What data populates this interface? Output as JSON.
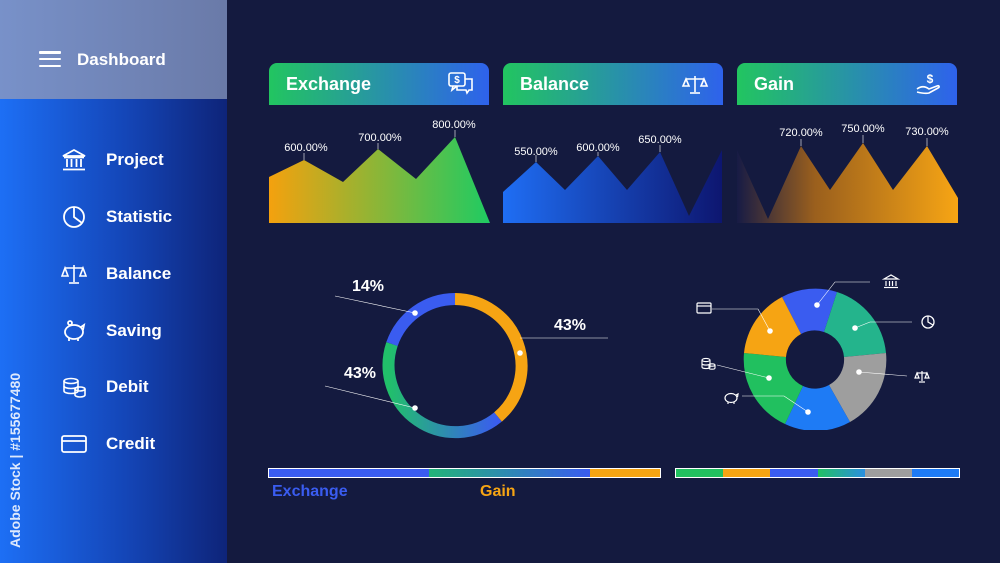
{
  "sidebar": {
    "title": "Dashboard",
    "items": [
      {
        "label": "Project",
        "icon": "bank-icon"
      },
      {
        "label": "Statistic",
        "icon": "pie-chart-icon"
      },
      {
        "label": "Balance",
        "icon": "scale-icon"
      },
      {
        "label": "Saving",
        "icon": "piggy-bank-icon"
      },
      {
        "label": "Debit",
        "icon": "coins-icon"
      },
      {
        "label": "Credit",
        "icon": "credit-card-icon"
      }
    ]
  },
  "cards": [
    {
      "title": "Exchange",
      "icon": "chat-dollar-icon"
    },
    {
      "title": "Balance",
      "icon": "scale-icon"
    },
    {
      "title": "Gain",
      "icon": "hand-dollar-icon"
    }
  ],
  "watermark": "Adobe Stock | #155677480",
  "colors": {
    "orange": "#f6a413",
    "green": "#21c05f",
    "blue": "#3a5cf0",
    "teal": "#2b9aa4",
    "gray": "#9e9e9e",
    "bright_blue": "#1e7bf5"
  },
  "legend": {
    "exchange": "Exchange",
    "gain": "Gain"
  },
  "chart_data": [
    {
      "type": "area",
      "title": "Exchange",
      "labels": [
        "600.00%",
        "700.00%",
        "800.00%"
      ]
    },
    {
      "type": "area",
      "title": "Balance",
      "labels": [
        "550.00%",
        "600.00%",
        "650.00%"
      ]
    },
    {
      "type": "area",
      "title": "Gain",
      "labels": [
        "720.00%",
        "750.00%",
        "730.00%"
      ]
    },
    {
      "type": "pie",
      "labels": [
        "14%",
        "43%",
        "43%"
      ],
      "values": [
        14,
        43,
        43
      ]
    },
    {
      "type": "pie",
      "icons": [
        "bank-icon",
        "pie-chart-icon",
        "scale-icon",
        "credit-card-icon",
        "coins-icon",
        "piggy-bank-icon"
      ]
    }
  ]
}
